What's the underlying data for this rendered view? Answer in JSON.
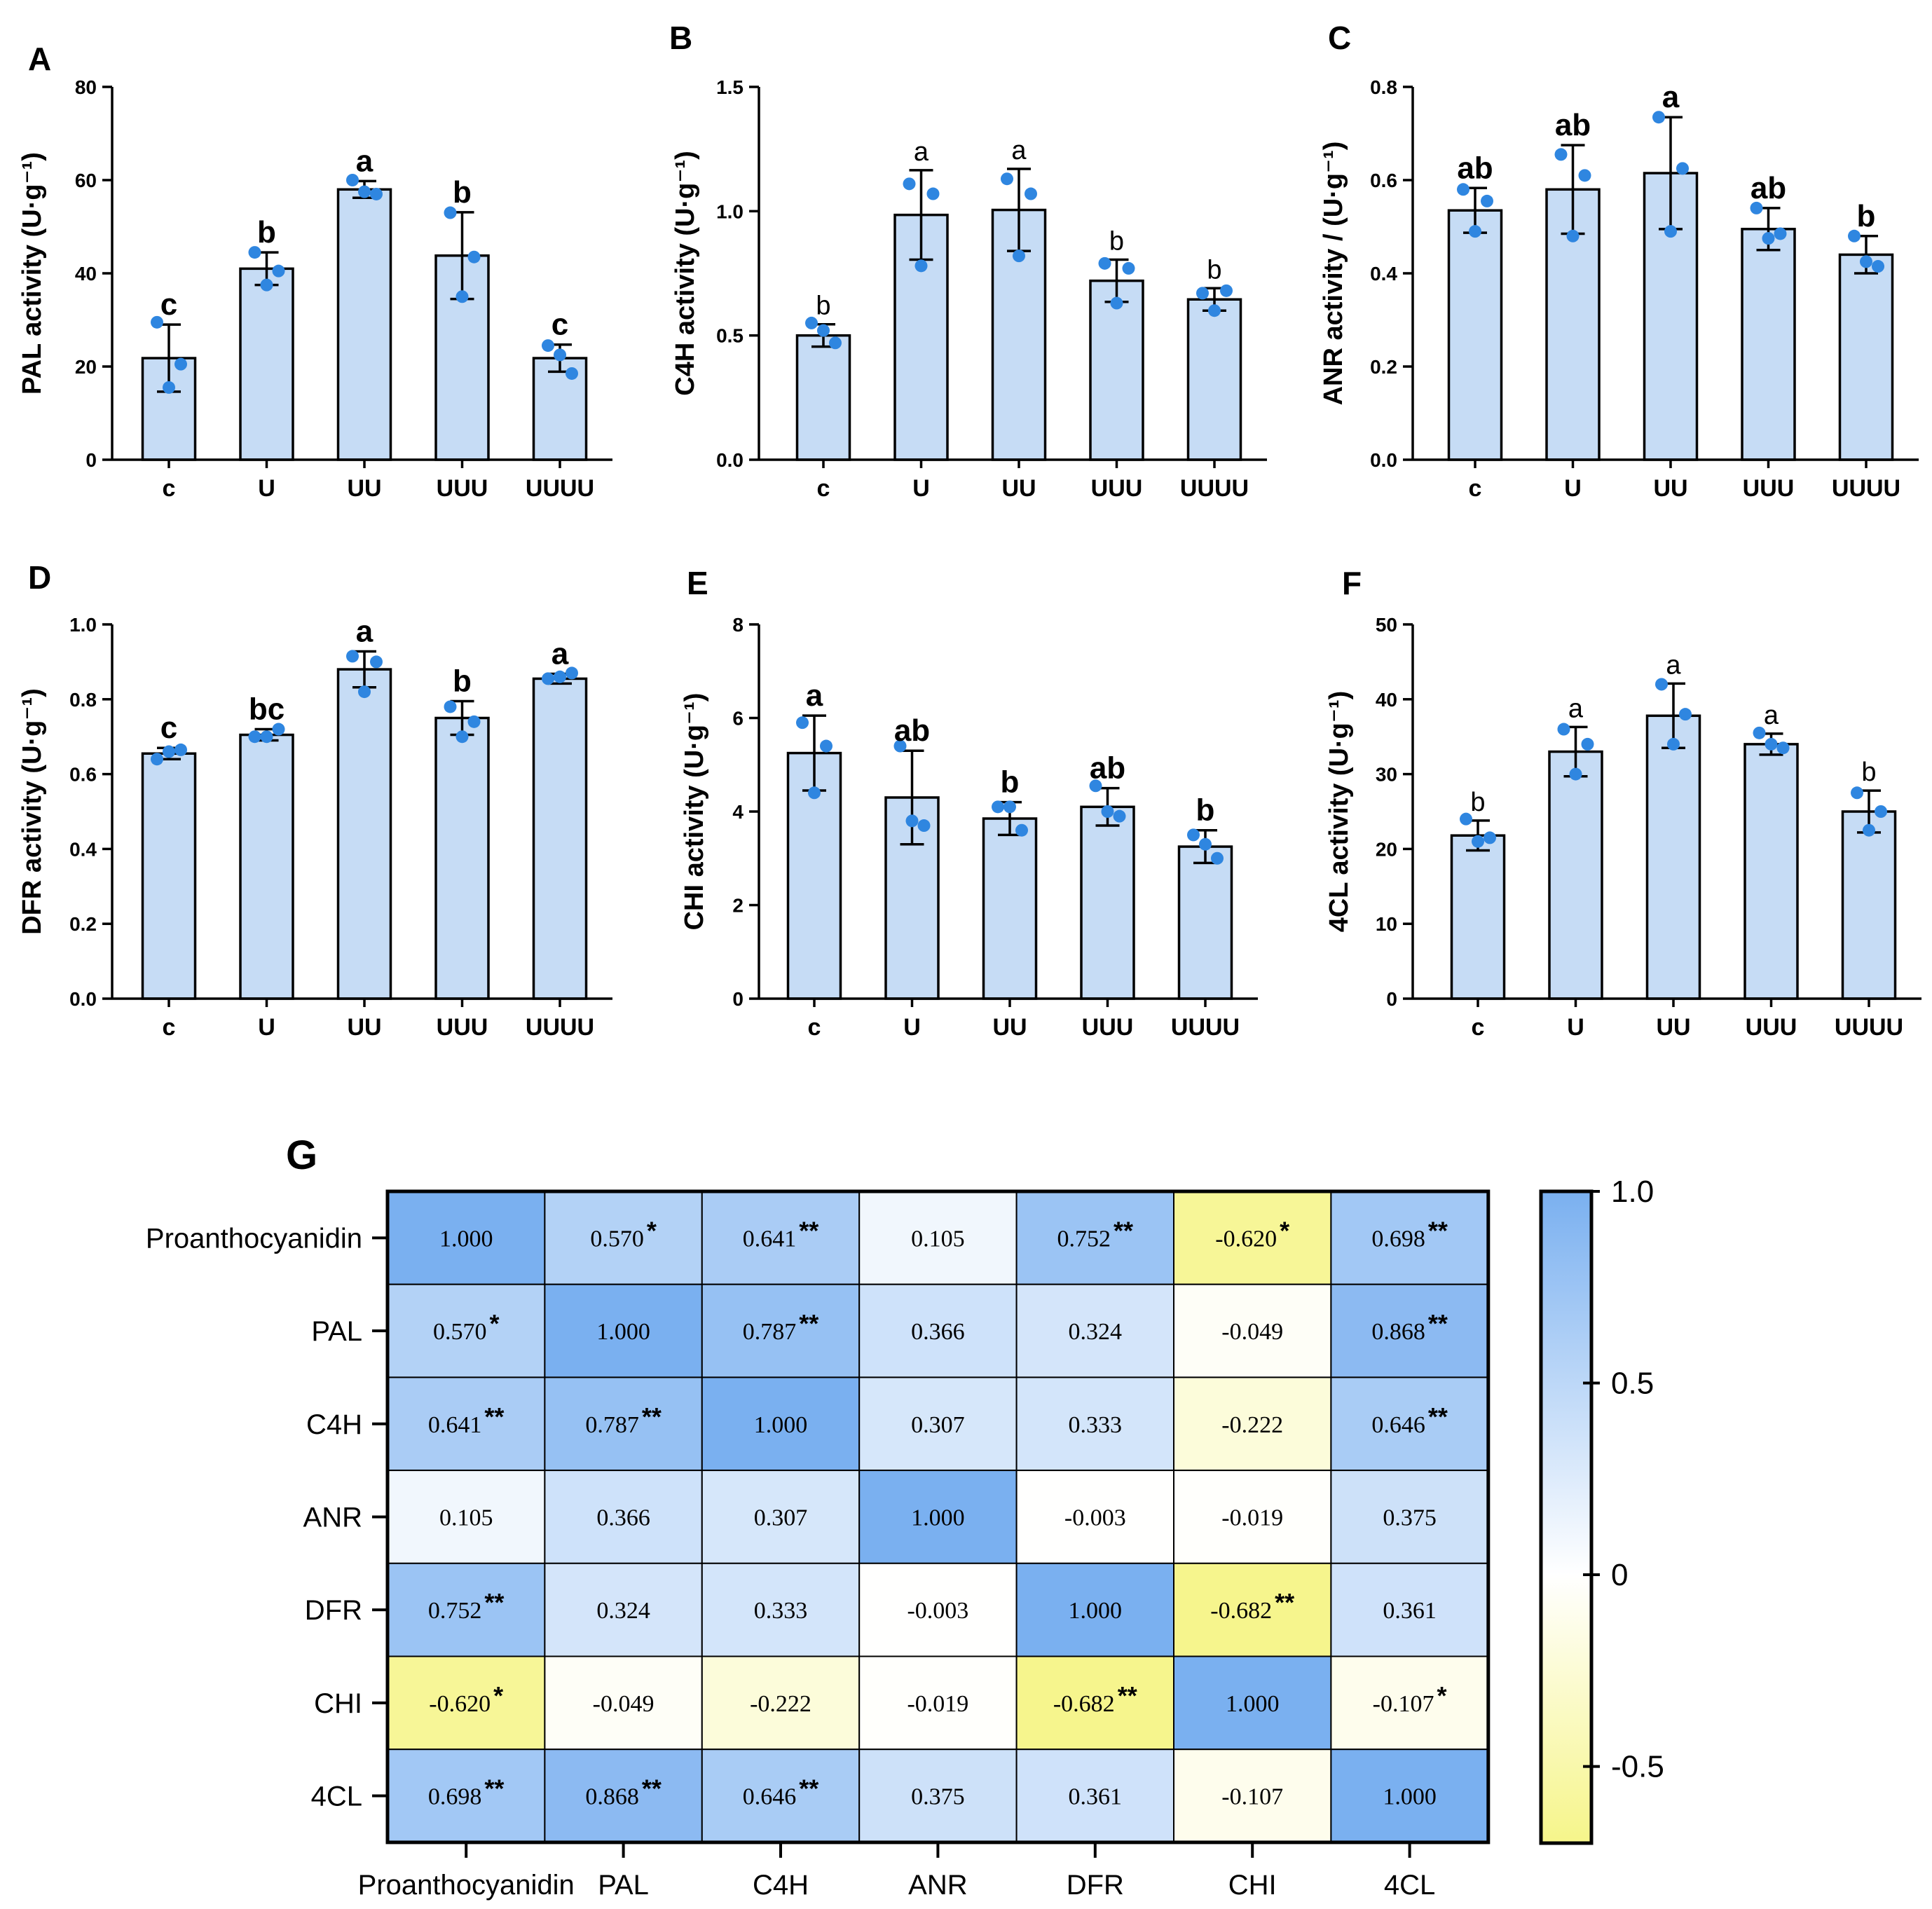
{
  "colors": {
    "bar_fill": "#c6dcf5",
    "bar_stroke": "#000000",
    "dot": "#2f86e0",
    "heat_pos": "#7ab0f0",
    "heat_zero": "#ffffff",
    "heat_neg": "#f6f58a"
  },
  "chart_data": [
    {
      "panel": "A",
      "type": "bar",
      "ylabel": "PAL activity (U·g⁻¹)",
      "categories": [
        "c",
        "U",
        "UU",
        "UUU",
        "UUUU"
      ],
      "ylim": [
        0,
        80
      ],
      "yticks": [
        "0",
        "20",
        "40",
        "60",
        "80"
      ],
      "letters_bold": true,
      "values": [
        21.8,
        41.0,
        58.0,
        43.8,
        21.8
      ],
      "errors": [
        7.2,
        3.5,
        1.8,
        9.3,
        2.9
      ],
      "points": [
        [
          29.5,
          20.5,
          15.5
        ],
        [
          44.5,
          40.5,
          37.5
        ],
        [
          60.0,
          57.0,
          57.5
        ],
        [
          53.0,
          43.5,
          35.0
        ],
        [
          24.5,
          18.5,
          22.5
        ]
      ],
      "letters": [
        "c",
        "b",
        "a",
        "b",
        "c"
      ]
    },
    {
      "panel": "B",
      "type": "bar",
      "ylabel": "C4H activity (U·g⁻¹)",
      "categories": [
        "c",
        "U",
        "UU",
        "UUU",
        "UUUU"
      ],
      "ylim": [
        0,
        1.5
      ],
      "yticks": [
        "0.0",
        "0.5",
        "1.0",
        "1.5"
      ],
      "letters_bold": false,
      "values": [
        0.5,
        0.985,
        1.005,
        0.72,
        0.645
      ],
      "errors": [
        0.045,
        0.18,
        0.165,
        0.085,
        0.045
      ],
      "points": [
        [
          0.55,
          0.47,
          0.52
        ],
        [
          1.11,
          1.07,
          0.78
        ],
        [
          1.13,
          1.07,
          0.82
        ],
        [
          0.79,
          0.77,
          0.63
        ],
        [
          0.67,
          0.68,
          0.6
        ]
      ],
      "letters": [
        "b",
        "a",
        "a",
        "b",
        "b"
      ]
    },
    {
      "panel": "C",
      "type": "bar",
      "ylabel": "ANR activity / (U·g⁻¹)",
      "categories": [
        "c",
        "U",
        "UU",
        "UUU",
        "UUUU"
      ],
      "ylim": [
        0,
        0.8
      ],
      "yticks": [
        "0.0",
        "0.2",
        "0.4",
        "0.6",
        "0.8"
      ],
      "letters_bold": true,
      "values": [
        0.535,
        0.58,
        0.615,
        0.495,
        0.44
      ],
      "errors": [
        0.048,
        0.095,
        0.12,
        0.045,
        0.04
      ],
      "points": [
        [
          0.58,
          0.555,
          0.49
        ],
        [
          0.655,
          0.61,
          0.48
        ],
        [
          0.735,
          0.625,
          0.49
        ],
        [
          0.54,
          0.485,
          0.475
        ],
        [
          0.48,
          0.415,
          0.425
        ]
      ],
      "letters": [
        "ab",
        "ab",
        "a",
        "ab",
        "b"
      ]
    },
    {
      "panel": "D",
      "type": "bar",
      "ylabel": "DFR activity (U·g⁻¹)",
      "categories": [
        "c",
        "U",
        "UU",
        "UUU",
        "UUUU"
      ],
      "ylim": [
        0,
        1.0
      ],
      "yticks": [
        "0.0",
        "0.2",
        "0.4",
        "0.6",
        "0.8",
        "1.0"
      ],
      "letters_bold": true,
      "values": [
        0.655,
        0.705,
        0.88,
        0.75,
        0.855
      ],
      "errors": [
        0.015,
        0.015,
        0.048,
        0.045,
        0.013
      ],
      "points": [
        [
          0.64,
          0.665,
          0.66
        ],
        [
          0.7,
          0.72,
          0.7
        ],
        [
          0.915,
          0.9,
          0.82
        ],
        [
          0.78,
          0.74,
          0.7
        ],
        [
          0.855,
          0.87,
          0.86
        ]
      ],
      "letters": [
        "c",
        "bc",
        "a",
        "b",
        "a"
      ]
    },
    {
      "panel": "E",
      "type": "bar",
      "ylabel": "CHI activity (U·g⁻¹)",
      "categories": [
        "c",
        "U",
        "UU",
        "UUU",
        "UUUU"
      ],
      "ylim": [
        0,
        8
      ],
      "yticks": [
        "0",
        "2",
        "4",
        "6",
        "8"
      ],
      "letters_bold": true,
      "values": [
        5.25,
        4.3,
        3.85,
        4.1,
        3.25
      ],
      "errors": [
        0.8,
        1.0,
        0.35,
        0.4,
        0.35
      ],
      "points": [
        [
          5.9,
          5.4,
          4.4
        ],
        [
          5.4,
          3.7,
          3.8
        ],
        [
          4.1,
          3.6,
          4.1
        ],
        [
          4.55,
          3.9,
          4.0
        ],
        [
          3.5,
          3.0,
          3.3
        ]
      ],
      "letters": [
        "a",
        "ab",
        "b",
        "ab",
        "b"
      ]
    },
    {
      "panel": "F",
      "type": "bar",
      "ylabel": "4CL activity (U·g⁻¹)",
      "categories": [
        "c",
        "U",
        "UU",
        "UUU",
        "UUUU"
      ],
      "ylim": [
        0,
        50
      ],
      "yticks": [
        "0",
        "10",
        "20",
        "30",
        "40",
        "50"
      ],
      "letters_bold": false,
      "values": [
        21.8,
        33.0,
        37.8,
        34.0,
        25.0
      ],
      "errors": [
        2.0,
        3.3,
        4.3,
        1.4,
        2.8
      ],
      "points": [
        [
          24.0,
          21.5,
          21.0
        ],
        [
          36.0,
          34.0,
          30.0
        ],
        [
          42.0,
          38.0,
          34.0
        ],
        [
          35.5,
          33.5,
          34.0
        ],
        [
          27.5,
          25.0,
          22.5
        ]
      ],
      "letters": [
        "b",
        "a",
        "a",
        "a",
        "b"
      ]
    },
    {
      "panel": "G",
      "type": "heatmap",
      "labels": [
        "Proanthocyanidin",
        "PAL",
        "C4H",
        "ANR",
        "DFR",
        "CHI",
        "4CL"
      ],
      "values": [
        [
          1.0,
          0.57,
          0.641,
          0.105,
          0.752,
          -0.62,
          0.698
        ],
        [
          0.57,
          1.0,
          0.787,
          0.366,
          0.324,
          -0.049,
          0.868
        ],
        [
          0.641,
          0.787,
          1.0,
          0.307,
          0.333,
          -0.222,
          0.646
        ],
        [
          0.105,
          0.366,
          0.307,
          1.0,
          -0.003,
          -0.019,
          0.375
        ],
        [
          0.752,
          0.324,
          0.333,
          -0.003,
          1.0,
          -0.682,
          0.361
        ],
        [
          -0.62,
          -0.049,
          -0.222,
          -0.019,
          -0.682,
          1.0,
          -0.107
        ],
        [
          0.698,
          0.868,
          0.646,
          0.375,
          0.361,
          -0.107,
          1.0
        ]
      ],
      "cell_text": [
        [
          "1.000",
          "0.570",
          "0.641",
          "0.105",
          "0.752",
          "-0.620",
          "0.698"
        ],
        [
          "0.570",
          "1.000",
          "0.787",
          "0.366",
          "0.324",
          "-0.049",
          "0.868"
        ],
        [
          "0.641",
          "0.787",
          "1.000",
          "0.307",
          "0.333",
          "-0.222",
          "0.646"
        ],
        [
          "0.105",
          "0.366",
          "0.307",
          "1.000",
          "-0.003",
          "-0.019",
          "0.375"
        ],
        [
          "0.752",
          "0.324",
          "0.333",
          "-0.003",
          "1.000",
          "-0.682",
          "0.361"
        ],
        [
          "-0.620",
          "-0.049",
          "-0.222",
          "-0.019",
          "-0.682",
          "1.000",
          "-0.107"
        ],
        [
          "0.698",
          "0.868",
          "0.646",
          "0.375",
          "0.361",
          "-0.107",
          "1.000"
        ]
      ],
      "stars": [
        [
          "",
          "*",
          "**",
          "",
          "**",
          "*",
          "**"
        ],
        [
          "*",
          "",
          "**",
          "",
          "",
          "",
          "**"
        ],
        [
          "**",
          "**",
          "",
          "",
          "",
          "",
          "**"
        ],
        [
          "",
          "",
          "",
          "",
          "",
          "",
          ""
        ],
        [
          "**",
          "",
          "",
          "",
          "",
          "**",
          ""
        ],
        [
          "*",
          "",
          "",
          "",
          "**",
          "",
          "*"
        ],
        [
          "**",
          "**",
          "**",
          "",
          "",
          "",
          ""
        ]
      ],
      "colorbar": {
        "range": [
          -0.7,
          1.0
        ],
        "ticks": [
          1.0,
          0.5,
          0,
          -0.5
        ],
        "tick_labels": [
          "1.0",
          "0.5",
          "0",
          "-0.5"
        ]
      }
    }
  ]
}
